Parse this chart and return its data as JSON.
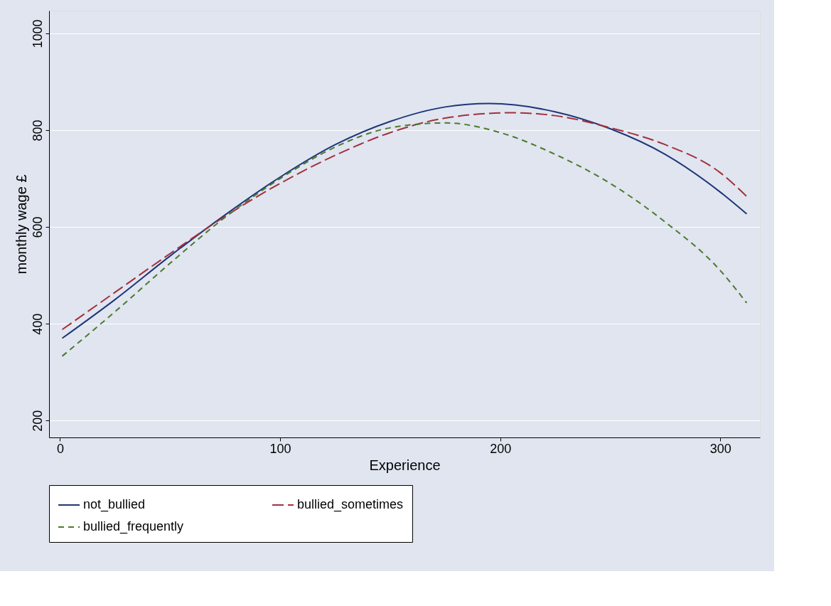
{
  "chart_data": {
    "type": "line",
    "xlabel": "Experience",
    "ylabel": "monthly wage £",
    "xlim": [
      -5,
      318
    ],
    "ylim": [
      165,
      1047
    ],
    "xticks": [
      0,
      100,
      200,
      300
    ],
    "yticks": [
      200,
      400,
      600,
      800,
      1000
    ],
    "grid": "y",
    "legend": "bottom",
    "marker": "none",
    "series": [
      {
        "name": "not_bullied",
        "color": "#1f3677",
        "line_style": "solid",
        "x": [
          1,
          25,
          50,
          75,
          100,
          125,
          150,
          175,
          195,
          225,
          250,
          275,
          300,
          312
        ],
        "values": [
          370,
          450,
          540,
          625,
          703,
          770,
          818,
          848,
          855,
          838,
          803,
          750,
          672,
          627
        ]
      },
      {
        "name": "bullied_sometimes",
        "color": "#a3303e",
        "line_style": "dashed",
        "x": [
          1,
          25,
          50,
          75,
          100,
          125,
          150,
          175,
          205,
          225,
          250,
          275,
          300,
          312
        ],
        "values": [
          388,
          465,
          545,
          622,
          690,
          748,
          795,
          825,
          836,
          830,
          805,
          770,
          712,
          663
        ]
      },
      {
        "name": "bullied_frequently",
        "color": "#4b7a2c",
        "line_style": "dashed",
        "x": [
          1,
          25,
          50,
          75,
          100,
          125,
          150,
          175,
          200,
          225,
          250,
          275,
          300,
          312
        ],
        "values": [
          333,
          425,
          525,
          620,
          700,
          765,
          805,
          815,
          795,
          750,
          690,
          610,
          510,
          443
        ]
      }
    ]
  }
}
